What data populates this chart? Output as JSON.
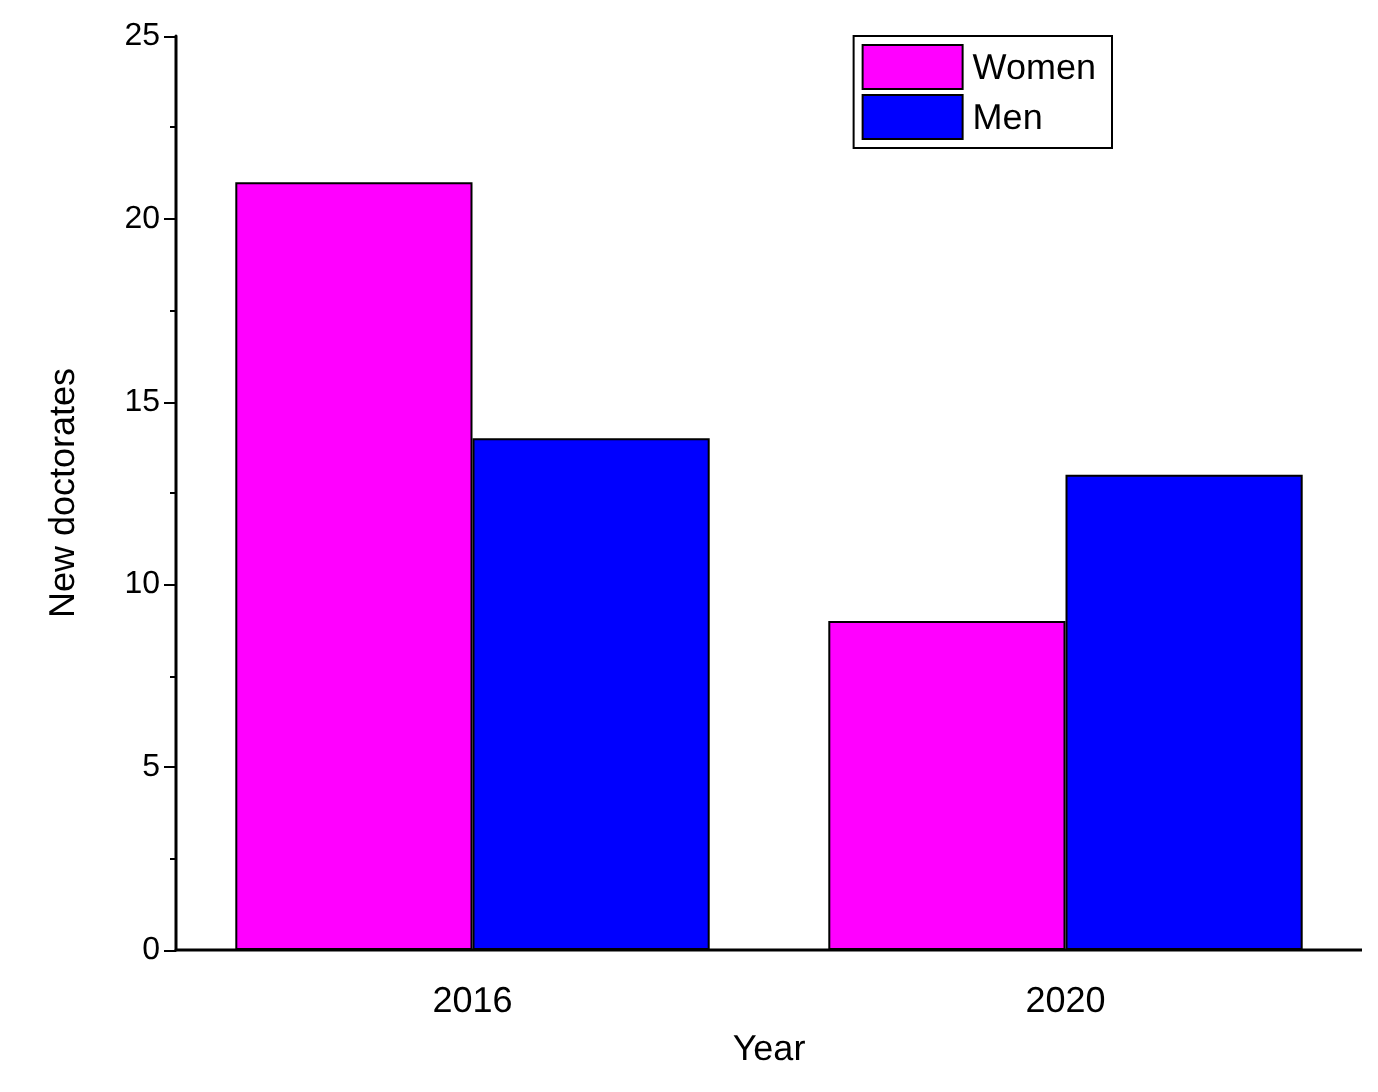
{
  "chart_data": {
    "type": "bar",
    "xlabel": "Year",
    "ylabel": "New doctorates",
    "categories": [
      "2016",
      "2020"
    ],
    "series": [
      {
        "name": "Women",
        "color": "#ff00ff",
        "values": [
          21,
          9
        ]
      },
      {
        "name": "Men",
        "color": "#0000ff",
        "values": [
          14,
          13
        ]
      }
    ],
    "ylim": [
      0,
      25
    ],
    "yticks": [
      0,
      5,
      10,
      15,
      20,
      25
    ],
    "grid": false,
    "legend": "top right"
  }
}
